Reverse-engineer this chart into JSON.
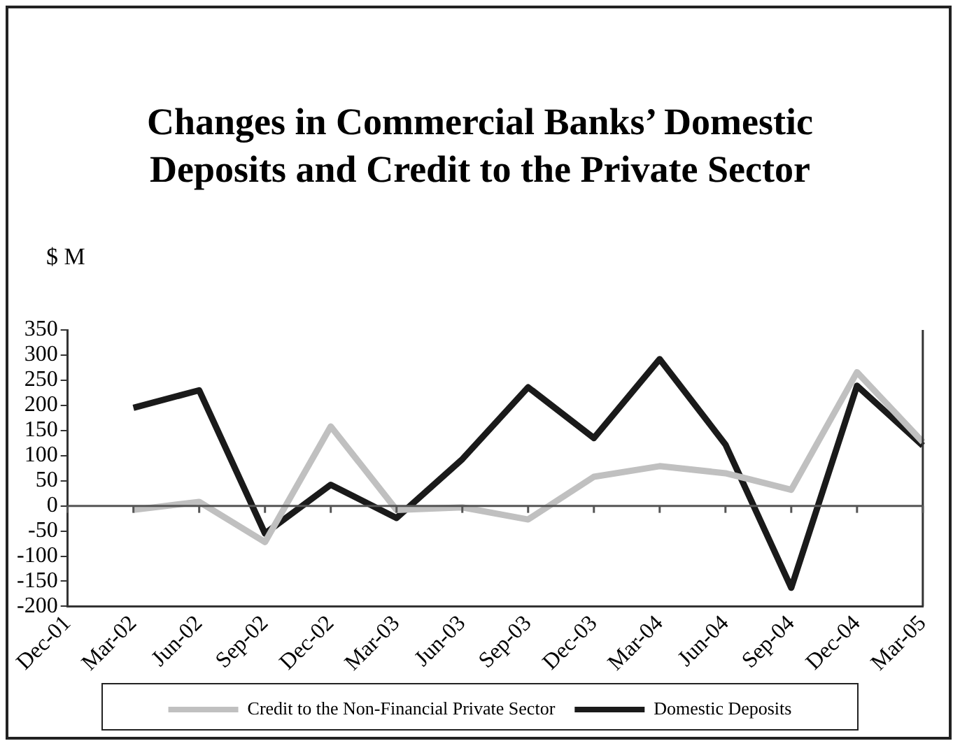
{
  "chart_data": {
    "type": "line",
    "title": "Changes in Commercial Banks’ Domestic Deposits and Credit to the Private Sector",
    "ylabel": "$ M",
    "categories": [
      "Dec-01",
      "Mar-02",
      "Jun-02",
      "Sep-02",
      "Dec-02",
      "Mar-03",
      "Jun-03",
      "Sep-03",
      "Dec-03",
      "Mar-04",
      "Jun-04",
      "Sep-04",
      "Dec-04",
      "Mar-05"
    ],
    "series": [
      {
        "name": "Credit to the Non-Financial Private Sector",
        "color": "#c0c0c0",
        "values": [
          null,
          -8,
          8,
          -72,
          158,
          -8,
          -3,
          -27,
          58,
          79,
          65,
          32,
          266,
          127
        ]
      },
      {
        "name": "Domestic Deposits",
        "color": "#1a1a1a",
        "values": [
          null,
          195,
          230,
          -55,
          42,
          -24,
          93,
          236,
          135,
          292,
          122,
          -163,
          239,
          120
        ]
      }
    ],
    "ylim": [
      -200,
      350
    ],
    "yticks": [
      -200,
      -150,
      -100,
      -50,
      0,
      50,
      100,
      150,
      200,
      250,
      300,
      350
    ],
    "grid": false,
    "ref_lines": [
      {
        "axis": "y",
        "value": 0,
        "color": "#555555"
      }
    ],
    "legend": "bottom",
    "marker": "none",
    "line_style": "solid"
  }
}
